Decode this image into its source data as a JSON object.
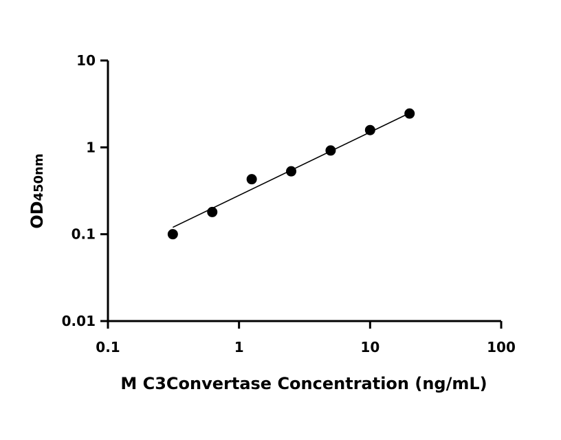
{
  "chart_data": {
    "type": "scatter",
    "xlabel": "M C3Convertase Concentration (ng/mL)",
    "ylabel_main": "OD",
    "ylabel_sub": "450nm",
    "x_scale": "log",
    "y_scale": "log",
    "xlim": [
      0.1,
      100
    ],
    "ylim": [
      0.01,
      10
    ],
    "x_ticks": [
      {
        "value": 0.1,
        "label": "0.1"
      },
      {
        "value": 1,
        "label": "1"
      },
      {
        "value": 10,
        "label": "10"
      },
      {
        "value": 100,
        "label": "100"
      }
    ],
    "y_ticks": [
      {
        "value": 0.01,
        "label": "0.01"
      },
      {
        "value": 0.1,
        "label": "0.1"
      },
      {
        "value": 1,
        "label": "1"
      },
      {
        "value": 10,
        "label": "10"
      }
    ],
    "points": [
      {
        "x": 0.3125,
        "y": 0.1
      },
      {
        "x": 0.625,
        "y": 0.18
      },
      {
        "x": 1.25,
        "y": 0.43
      },
      {
        "x": 2.5,
        "y": 0.53
      },
      {
        "x": 5,
        "y": 0.92
      },
      {
        "x": 10,
        "y": 1.58
      },
      {
        "x": 20,
        "y": 2.45
      }
    ],
    "fit_line": [
      {
        "x": 0.3125,
        "y": 0.12
      },
      {
        "x": 20,
        "y": 2.48
      }
    ],
    "grid": false,
    "legend": "none",
    "colors": {
      "marker": "#000000",
      "line": "#000000",
      "axis": "#000000"
    }
  }
}
